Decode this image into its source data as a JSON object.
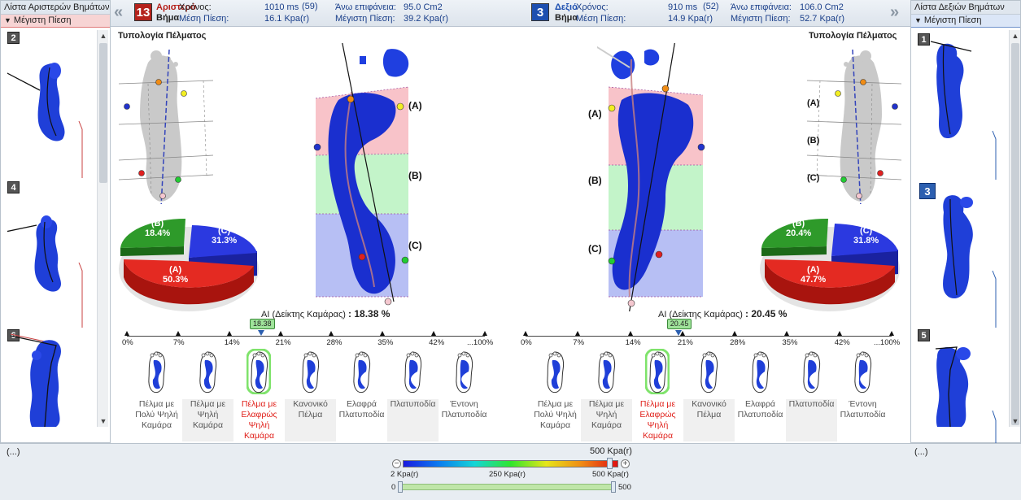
{
  "left_panel": {
    "title": "Λίστα Αριστερών Βημάτων",
    "sub": "Μέγιστη Πίεση",
    "thumbs": [
      "2",
      "4",
      "6"
    ]
  },
  "right_panel": {
    "title": "Λίστα Δεξιών Βημάτων",
    "sub": "Μέγιστη Πίεση",
    "thumbs": [
      "1",
      "3",
      "5"
    ],
    "selected": "3"
  },
  "header_left": {
    "nav": "«",
    "step": "13",
    "name1": "Αριστερό",
    "name2": "Βήμα",
    "time_label": "Χρόνος:",
    "time_value": "1010 ms",
    "time_count": "(59)",
    "mean_label": "Μέση Πίεση:",
    "mean_value": "16.1 Kpa(r)",
    "area_label": "Άνω επιφάνεια:",
    "area_value": "95.0 Cm2",
    "max_label": "Μέγιστη Πίεση:",
    "max_value": "39.2 Kpa(r)"
  },
  "header_right": {
    "nav": "»",
    "step": "3",
    "name1": "Δεξιό",
    "name2": "Βήμα",
    "time_label": "Χρόνος:",
    "time_value": "910 ms",
    "time_count": "(52)",
    "mean_label": "Μέση Πίεση:",
    "mean_value": "14.9 Kpa(r)",
    "area_label": "Άνω επιφάνεια:",
    "area_value": "106.0 Cm2",
    "max_label": "Μέγιστη Πίεση:",
    "max_value": "52.7 Kpa(r)"
  },
  "left_analysis": {
    "typology_title": "Τυπολογία Πέλματος",
    "zone_a": "(A)",
    "zone_b": "(B)",
    "zone_c": "(C)",
    "pie": {
      "a_label": "(A)",
      "a_value": "50.3%",
      "b_label": "(B)",
      "b_value": "18.4%",
      "c_label": "(C)",
      "c_value": "31.3%"
    },
    "ai_label": "AI (Δείκτης Καμάρας)",
    "ai_value": ": 18.38 %",
    "ai_badge": "18.38",
    "ai_fraction": 0.1838
  },
  "right_analysis": {
    "typology_title": "Τυπολογία Πέλματος",
    "zone_a": "(A)",
    "zone_b": "(B)",
    "zone_c": "(C)",
    "pie": {
      "a_label": "(A)",
      "a_value": "47.7%",
      "b_label": "(B)",
      "b_value": "20.4%",
      "c_label": "(C)",
      "c_value": "31.8%"
    },
    "ai_label": "AI (Δείκτης Καμάρας)",
    "ai_value": ": 20.45 %",
    "ai_badge": "20.45",
    "ai_fraction": 0.2045
  },
  "scale_ticks": [
    "0%",
    "7%",
    "14%",
    "21%",
    "28%",
    "35%",
    "42%",
    "...100%"
  ],
  "categories": [
    "Πέλμα με Πολύ Ψηλή Καμάρα",
    "Πέλμα με Ψηλή Καμάρα",
    "Πέλμα με Ελαφρώς Ψηλή Καμάρα",
    "Κανονικό Πέλμα",
    "Ελαφρά Πλατυποδία",
    "Πλατυποδία",
    "Έντονη Πλατυποδία"
  ],
  "active_category_index": 2,
  "bottom": {
    "left_dots": "(...)",
    "right_dots": "(...)",
    "max_label": "500 Kpa(r)",
    "min_tick": "2 Kpa(r)",
    "mid_tick": "250 Kpa(r)",
    "max_tick": "500 Kpa(r)",
    "range_min": "0",
    "range_max": "500",
    "minus": "−",
    "plus": "+"
  },
  "colors": {
    "zone_a": "#f7b8c0",
    "zone_b": "#b8f2c0",
    "zone_c": "#aab4f2",
    "pie_a": "#e42a22",
    "pie_b": "#2e9a2a",
    "pie_c": "#2b39e0",
    "accent_left": "#b5221c",
    "accent_right": "#1d4fb0"
  }
}
